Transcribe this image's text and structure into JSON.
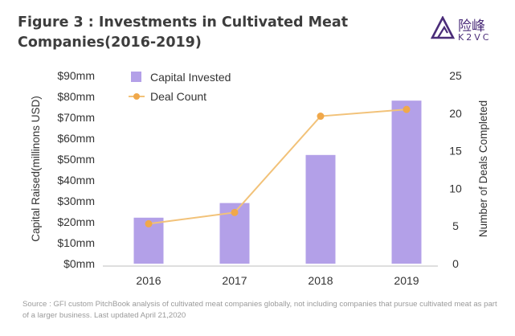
{
  "header": {
    "title": "Figure 3 : Investments in Cultivated Meat Companies(2016-2019)"
  },
  "logo": {
    "cn": "险峰",
    "en": "K2VC",
    "color": "#4a2c79"
  },
  "chart_data": {
    "type": "bar",
    "categories": [
      "2016",
      "2017",
      "2018",
      "2019"
    ],
    "series": [
      {
        "name": "Capital Invested",
        "type": "bar",
        "axis": "left",
        "values": [
          22,
          29,
          52,
          78
        ],
        "color": "#b3a0e8"
      },
      {
        "name": "Deal Count",
        "type": "line",
        "axis": "right",
        "values": [
          5.3,
          6.8,
          19.6,
          20.5
        ],
        "color": "#f2c279",
        "marker_color": "#f0a84a"
      }
    ],
    "y_left": {
      "label": "Capital Raised(millinons USD)",
      "range": [
        0,
        90
      ],
      "ticks": [
        "$0mm",
        "$10mm",
        "$20mm",
        "$30mm",
        "$40mm",
        "$50mm",
        "$60mm",
        "$70mm",
        "$80mm",
        "$90mm"
      ]
    },
    "y_right": {
      "label": "Number of Deals Completed",
      "range": [
        0,
        25
      ],
      "ticks": [
        "0",
        "5",
        "10",
        "15",
        "20",
        "25"
      ]
    },
    "legend": [
      "Capital Invested",
      "Deal Count"
    ],
    "legend_position": "top-left"
  },
  "footer": {
    "source": "Source : GFI custom PitchBook analysis of cultivated meat companies globally, not including companies that pursue cultivated meat as part of a larger business. Last updated April 21,2020"
  }
}
